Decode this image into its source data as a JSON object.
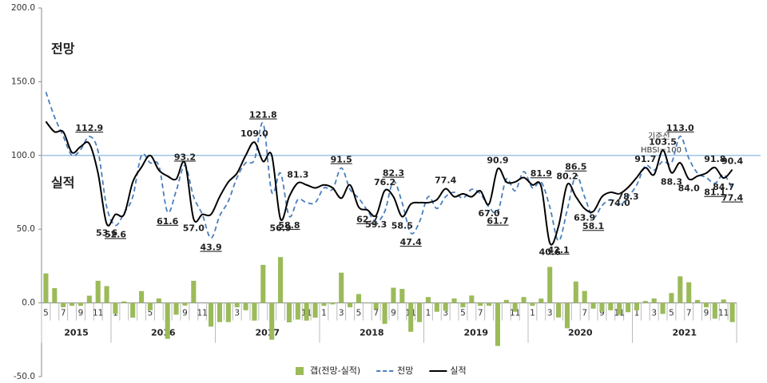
{
  "chart_data": {
    "type": "bar-line",
    "categories": [
      "5",
      null,
      "7",
      null,
      "9",
      null,
      "11",
      null,
      "1",
      null,
      "3",
      null,
      "5",
      null,
      "7",
      null,
      "9",
      null,
      "11",
      null,
      "1",
      null,
      "3",
      null,
      "5",
      null,
      "7",
      null,
      "9",
      null,
      "11",
      null,
      "1",
      null,
      "3",
      null,
      "5",
      null,
      "7",
      null,
      "9",
      null,
      "11",
      null,
      "1",
      null,
      "3",
      null,
      "5",
      null,
      "7",
      null,
      "9",
      null,
      "11",
      null,
      "1",
      null,
      "3",
      null,
      "5",
      null,
      "7",
      null,
      "9",
      null,
      "11",
      null,
      "1",
      null,
      "3",
      null,
      "5",
      null,
      "7",
      null,
      "9",
      null,
      "11",
      null
    ],
    "category_years": [
      "2015",
      "2015",
      "2015",
      "2015",
      "2015",
      "2015",
      "2015",
      "2015",
      "2016",
      "2016",
      "2016",
      "2016",
      "2016",
      "2016",
      "2016",
      "2016",
      "2016",
      "2016",
      "2016",
      "2016",
      "2017",
      "2017",
      "2017",
      "2017",
      "2017",
      "2017",
      "2017",
      "2017",
      "2017",
      "2017",
      "2017",
      "2017",
      "2018",
      "2018",
      "2018",
      "2018",
      "2018",
      "2018",
      "2018",
      "2018",
      "2018",
      "2018",
      "2018",
      "2018",
      "2019",
      "2019",
      "2019",
      "2019",
      "2019",
      "2019",
      "2019",
      "2019",
      "2019",
      "2019",
      "2019",
      "2019",
      "2020",
      "2020",
      "2020",
      "2020",
      "2020",
      "2020",
      "2020",
      "2020",
      "2020",
      "2020",
      "2020",
      "2020",
      "2021",
      "2021",
      "2021",
      "2021",
      "2021",
      "2021",
      "2021",
      "2021",
      "2021",
      "2021",
      "2021",
      "2021"
    ],
    "series": [
      {
        "name": "갭(전망-실적)",
        "kind": "bar",
        "color": "#9bbb59",
        "values": [
          20,
          10,
          -3,
          -2,
          -2,
          4.9,
          15,
          11.4,
          -7.4,
          1,
          -10,
          8,
          -5,
          3,
          -24.4,
          -8,
          -1.8,
          15,
          0,
          -16.1,
          -13,
          -13,
          -3,
          -5,
          -12,
          25.8,
          -25,
          31.1,
          -13.2,
          -11.3,
          -12,
          -10,
          -2,
          -1,
          20.5,
          -3,
          6,
          -0.3,
          -4.3,
          -14.2,
          10.3,
          9.5,
          -19.6,
          -13,
          4,
          -6,
          -5.4,
          3,
          -3,
          5,
          -2,
          -2,
          -29.2,
          2,
          -6,
          4,
          -2,
          2.9,
          24.4,
          -9.9,
          -17.2,
          14.5,
          8.1,
          -3.9,
          -6,
          -5,
          -8,
          -6.3,
          -5,
          1.3,
          3,
          -7.5,
          6.7,
          18,
          14,
          2,
          -3,
          -10.7,
          2.3,
          -13
        ]
      },
      {
        "name": "전망",
        "kind": "dashed",
        "color": "#4a7ebb",
        "values": [
          143,
          126,
          113,
          100,
          104,
          112.9,
          103,
          65,
          52.6,
          61,
          72,
          100,
          95,
          93,
          61.6,
          76,
          93.2,
          72,
          60,
          43.9,
          59,
          69,
          85,
          95,
          97,
          121.8,
          75,
          88,
          58.8,
          70,
          68,
          68,
          78,
          77,
          91.5,
          77,
          71,
          62.7,
          55,
          62,
          82.3,
          68,
          47.4,
          55,
          72,
          64,
          72,
          75,
          71,
          77,
          74,
          65,
          61.7,
          84,
          76,
          89,
          78,
          81.9,
          65,
          42.1,
          63,
          86.5,
          72,
          58.1,
          66,
          70,
          66,
          72,
          80,
          93,
          90,
          96,
          95,
          113,
          98,
          88,
          85,
          81.1,
          87,
          77.4
        ],
        "value_labels": [
          null,
          null,
          null,
          null,
          null,
          "112.9",
          null,
          null,
          "52.6",
          null,
          null,
          null,
          null,
          null,
          "61.6",
          null,
          "93.2",
          null,
          null,
          "43.9",
          null,
          null,
          null,
          null,
          null,
          "121.8",
          null,
          null,
          "58.8",
          null,
          null,
          null,
          null,
          null,
          "91.5",
          null,
          null,
          "62.7",
          null,
          null,
          "82.3",
          null,
          "47.4",
          null,
          null,
          null,
          null,
          null,
          null,
          null,
          null,
          null,
          "61.7",
          null,
          null,
          null,
          null,
          "81.9",
          null,
          "42.1",
          null,
          "86.5",
          null,
          "58.1",
          null,
          null,
          null,
          null,
          null,
          null,
          null,
          null,
          null,
          "113.0",
          null,
          null,
          null,
          "81.1",
          null,
          "77.4"
        ]
      },
      {
        "name": "실적",
        "kind": "solid",
        "color": "#000000",
        "values": [
          123,
          116,
          116,
          102,
          106,
          108,
          88,
          53.6,
          60,
          60,
          82,
          92,
          100,
          90,
          86,
          84,
          95,
          57,
          60,
          60,
          72,
          82,
          88,
          100,
          109,
          96,
          100,
          56.9,
          72,
          81.3,
          80,
          78,
          80,
          78,
          71,
          80,
          65,
          63,
          59.3,
          76.2,
          72,
          58.5,
          67,
          68,
          68,
          70,
          77.4,
          72,
          74,
          72,
          76,
          67,
          90.9,
          82,
          82,
          85,
          80,
          79,
          40.6,
          52,
          80.2,
          72,
          63.9,
          62,
          72,
          75,
          74,
          78.3,
          85,
          91.7,
          87,
          103.5,
          88.3,
          95,
          84,
          86,
          88,
          91.8,
          84.7,
          90.4
        ],
        "value_labels": [
          null,
          null,
          null,
          null,
          null,
          null,
          null,
          "53.6",
          null,
          null,
          null,
          null,
          null,
          null,
          null,
          null,
          null,
          "57.0",
          null,
          null,
          null,
          null,
          null,
          null,
          "109.0",
          null,
          null,
          "56.9",
          null,
          "81.3",
          null,
          null,
          null,
          null,
          null,
          null,
          null,
          null,
          "59.3",
          "76.2",
          null,
          "58.5",
          null,
          null,
          null,
          null,
          "77.4",
          null,
          null,
          null,
          null,
          "67.0",
          "90.9",
          null,
          null,
          null,
          null,
          null,
          "40.6",
          null,
          "80.2",
          null,
          "63.9",
          null,
          null,
          null,
          "74.0",
          "78.3",
          null,
          "91.7",
          null,
          "103.5",
          "88.3",
          null,
          "84.0",
          null,
          null,
          "91.8",
          "84.7",
          "90.4"
        ]
      }
    ],
    "ylim": [
      -50,
      200
    ],
    "yticks": [
      {
        "value": -50,
        "label": "-50.0"
      },
      {
        "value": 0,
        "label": "0.0"
      },
      {
        "value": 50,
        "label": "50.0"
      },
      {
        "value": 100,
        "label": "100.0"
      },
      {
        "value": 150,
        "label": "150.0"
      },
      {
        "value": 200,
        "label": "200.0"
      }
    ],
    "reference_line": 100,
    "annotations": [
      "전망",
      "실적",
      "기준선",
      "HBSI=100"
    ],
    "grid": false
  }
}
